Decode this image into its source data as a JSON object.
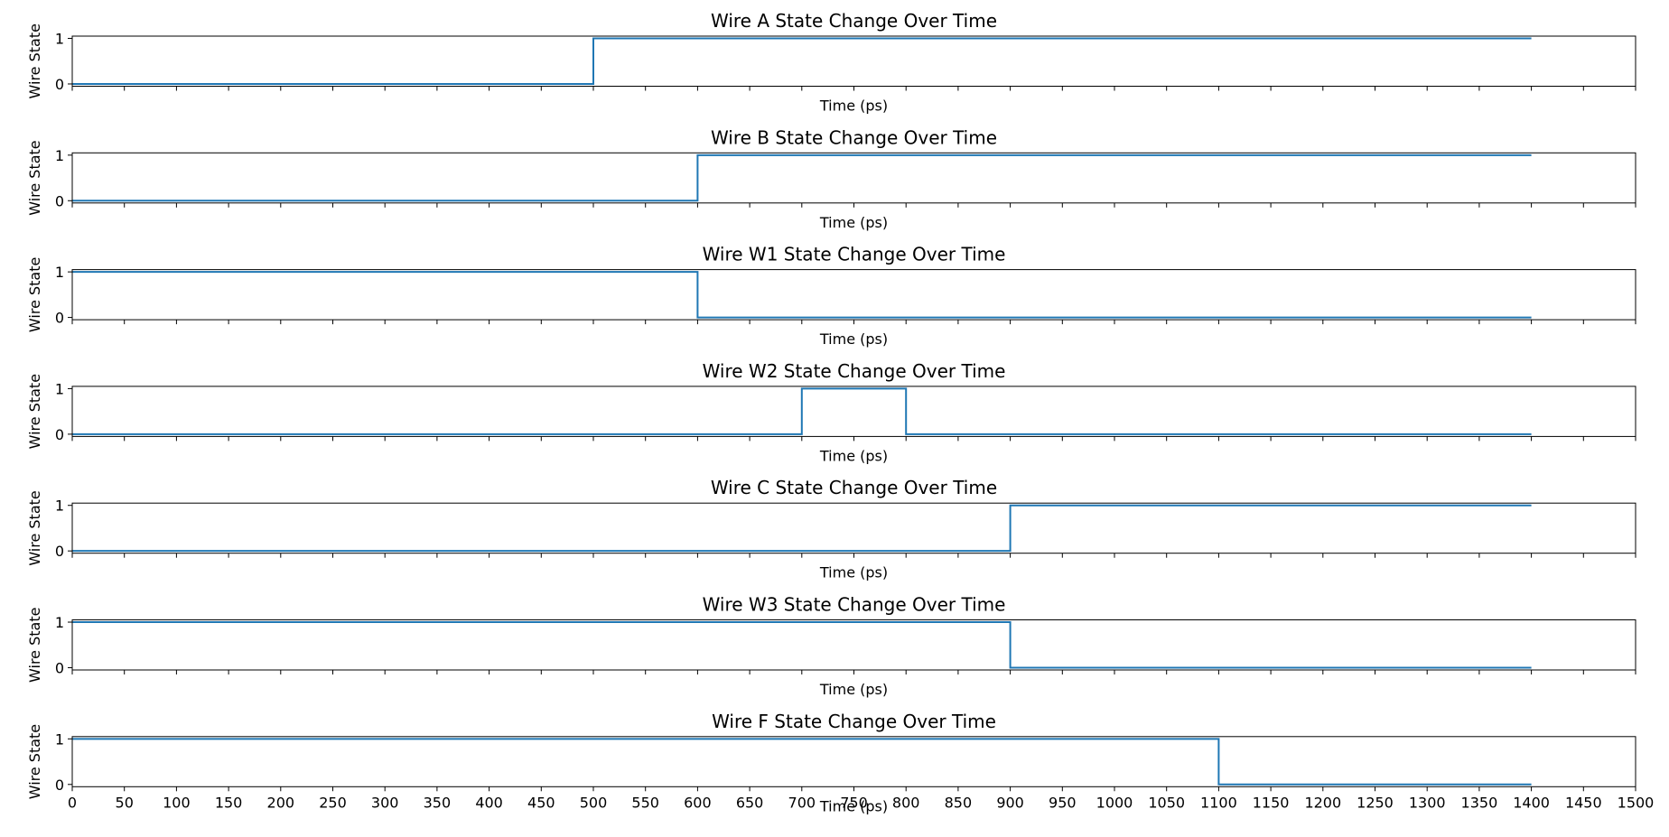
{
  "chart_data": {
    "type": "line",
    "step": "post",
    "xlim": [
      0,
      1500
    ],
    "ylim": [
      0,
      1
    ],
    "x_ticks": [
      0,
      50,
      100,
      150,
      200,
      250,
      300,
      350,
      400,
      450,
      500,
      550,
      600,
      650,
      700,
      750,
      800,
      850,
      900,
      950,
      1000,
      1050,
      1100,
      1150,
      1200,
      1250,
      1300,
      1350,
      1400,
      1450,
      1500
    ],
    "y_ticks": [
      0,
      1
    ],
    "xlabel": "Time (ps)",
    "ylabel": "Wire State",
    "line_color": "#1f77b4",
    "panels": [
      {
        "title": "Wire A State Change Over Time",
        "x": [
          0,
          500,
          1400
        ],
        "y": [
          0,
          1,
          1
        ]
      },
      {
        "title": "Wire B State Change Over Time",
        "x": [
          0,
          600,
          1400
        ],
        "y": [
          0,
          1,
          1
        ]
      },
      {
        "title": "Wire W1 State Change Over Time",
        "x": [
          0,
          600,
          1400
        ],
        "y": [
          1,
          0,
          0
        ]
      },
      {
        "title": "Wire W2 State Change Over Time",
        "x": [
          0,
          700,
          800,
          1400
        ],
        "y": [
          0,
          1,
          0,
          0
        ]
      },
      {
        "title": "Wire C State Change Over Time",
        "x": [
          0,
          900,
          1400
        ],
        "y": [
          0,
          1,
          1
        ]
      },
      {
        "title": "Wire W3 State Change Over Time",
        "x": [
          0,
          900,
          1400
        ],
        "y": [
          1,
          0,
          0
        ]
      },
      {
        "title": "Wire F State Change Over Time",
        "x": [
          0,
          1100,
          1400
        ],
        "y": [
          1,
          0,
          0
        ]
      }
    ]
  }
}
